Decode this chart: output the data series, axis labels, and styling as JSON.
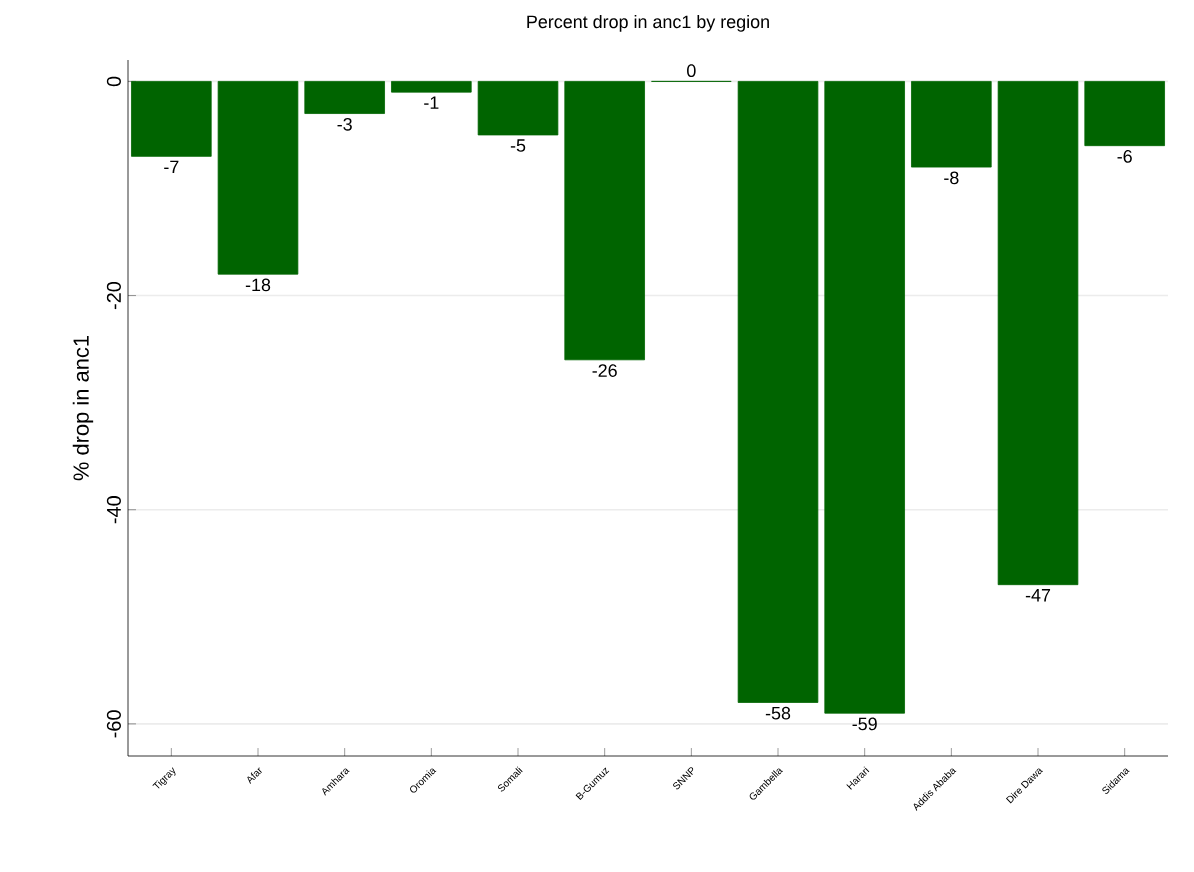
{
  "chart_data": {
    "type": "bar",
    "title": "Percent drop in anc1 by region",
    "ylabel": "% drop in anc1",
    "categories": [
      "Tigray",
      "Afar",
      "Amhara",
      "Oromia",
      "Somali",
      "B-Gumuz",
      "SNNP",
      "Gambella",
      "Harari",
      "Addis Ababa",
      "Dire Dawa",
      "Sidama"
    ],
    "values": [
      -7,
      -18,
      -3,
      -1,
      -5,
      -26,
      0,
      -58,
      -59,
      -8,
      -47,
      -6
    ],
    "color": "#006400",
    "ylim": [
      -63,
      2
    ],
    "yticks": [
      -60,
      -40,
      -20,
      0
    ],
    "grid": "y",
    "data_labels": true
  }
}
